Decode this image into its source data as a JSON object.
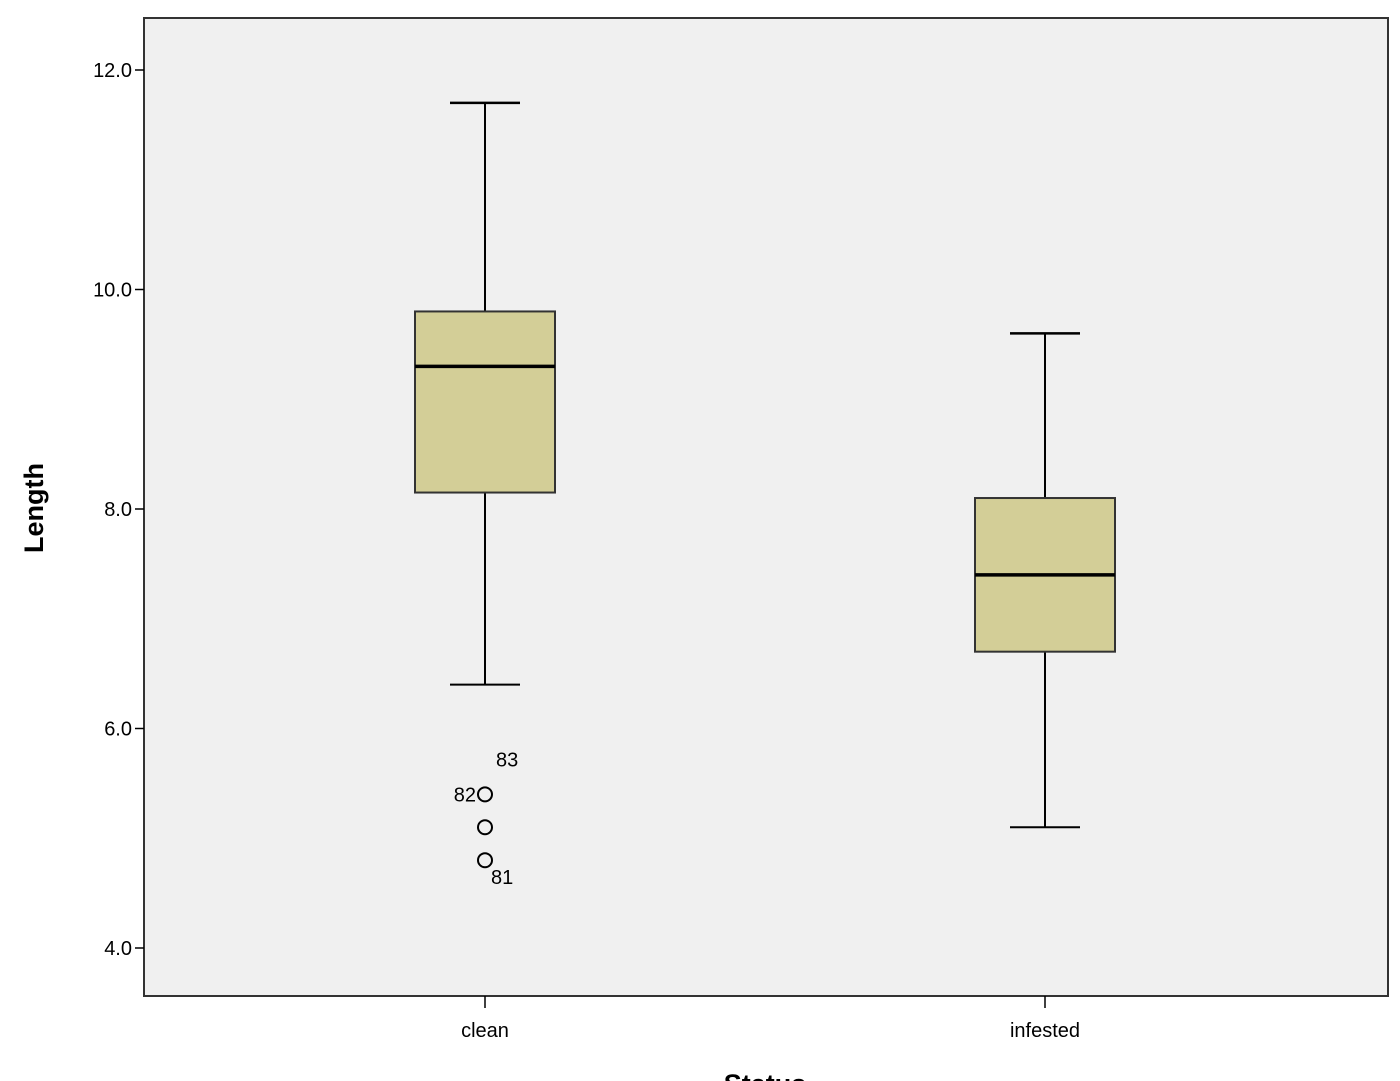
{
  "chart_data": {
    "type": "boxplot",
    "title": "",
    "xlabel": "Status",
    "ylabel": "Length",
    "ylim": [
      3.6,
      12.45
    ],
    "yticks": [
      {
        "value": 4.0,
        "label": "4.0"
      },
      {
        "value": 6.0,
        "label": "6.0"
      },
      {
        "value": 8.0,
        "label": "8.0"
      },
      {
        "value": 10.0,
        "label": "10.0"
      },
      {
        "value": 12.0,
        "label": "12.0"
      }
    ],
    "categories": [
      "clean",
      "infested"
    ],
    "boxes": [
      {
        "category": "clean",
        "whisker_low": 6.4,
        "q1": 8.15,
        "median": 9.3,
        "q3": 9.8,
        "whisker_high": 11.7,
        "outliers": [
          {
            "value": 5.4,
            "label": "83"
          },
          {
            "value": 5.1,
            "label": "82"
          },
          {
            "value": 4.8,
            "label": "81"
          }
        ]
      },
      {
        "category": "infested",
        "whisker_low": 5.1,
        "q1": 6.7,
        "median": 7.4,
        "q3": 8.1,
        "whisker_high": 9.6,
        "outliers": []
      }
    ],
    "colors": {
      "plot_background": "#f0f0f0",
      "box_fill": "#d3ce97",
      "stroke": "#000000"
    },
    "grid": false,
    "legend": "none"
  }
}
